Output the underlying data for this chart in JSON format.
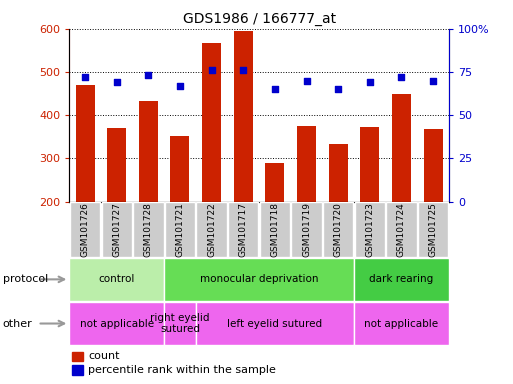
{
  "title": "GDS1986 / 166777_at",
  "samples": [
    "GSM101726",
    "GSM101727",
    "GSM101728",
    "GSM101721",
    "GSM101722",
    "GSM101717",
    "GSM101718",
    "GSM101719",
    "GSM101720",
    "GSM101723",
    "GSM101724",
    "GSM101725"
  ],
  "counts": [
    470,
    370,
    432,
    352,
    568,
    596,
    290,
    375,
    334,
    372,
    449,
    368
  ],
  "percentiles": [
    72,
    69,
    73,
    67,
    76,
    76,
    65,
    70,
    65,
    69,
    72,
    70
  ],
  "ymin": 200,
  "ymax": 600,
  "yticks": [
    200,
    300,
    400,
    500,
    600
  ],
  "y2ticks": [
    0,
    25,
    50,
    75,
    100
  ],
  "bar_color": "#cc2200",
  "dot_color": "#0000cc",
  "sample_box_color": "#cccccc",
  "protocol_groups": [
    {
      "label": "control",
      "start": 0,
      "end": 3,
      "color": "#bbeeaa"
    },
    {
      "label": "monocular deprivation",
      "start": 3,
      "end": 9,
      "color": "#66dd55"
    },
    {
      "label": "dark rearing",
      "start": 9,
      "end": 12,
      "color": "#44cc44"
    }
  ],
  "other_groups": [
    {
      "label": "not applicable",
      "start": 0,
      "end": 3,
      "color": "#ee66ee"
    },
    {
      "label": "right eyelid\nsutured",
      "start": 3,
      "end": 4,
      "color": "#ee66ee"
    },
    {
      "label": "left eyelid sutured",
      "start": 4,
      "end": 9,
      "color": "#ee66ee"
    },
    {
      "label": "not applicable",
      "start": 9,
      "end": 12,
      "color": "#ee66ee"
    }
  ],
  "bar_color_label": "count",
  "dot_color_label": "percentile rank within the sample",
  "arrow_color": "#999999",
  "label_color": "#333333"
}
